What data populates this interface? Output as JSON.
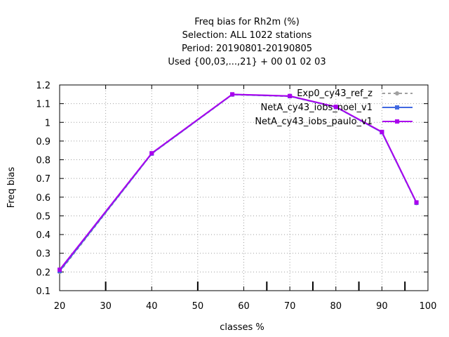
{
  "chart_data": {
    "type": "line",
    "title": [
      "Freq bias  for Rh2m (%)",
      "Selection: ALL    1022 stations",
      "Period: 20190801-20190805",
      "Used {00,03,...,21} + 00 01 02 03"
    ],
    "xlabel": "classes %",
    "ylabel": "Freq bias",
    "xlim": [
      20,
      100
    ],
    "ylim": [
      0.1,
      1.2
    ],
    "xticks": [
      20,
      30,
      40,
      50,
      60,
      70,
      80,
      90,
      100
    ],
    "yticks": [
      0.1,
      0.2,
      0.3,
      0.4,
      0.5,
      0.6,
      0.7,
      0.8,
      0.9,
      1,
      1.1,
      1.2
    ],
    "ytick_labels": [
      "0.1",
      "0.2",
      "0.3",
      "0.4",
      "0.5",
      "0.6",
      "0.7",
      "0.8",
      "0.9",
      "1",
      "1.1",
      "1.2"
    ],
    "grid": true,
    "legend_position": "top-right",
    "extra_xticks": [
      30,
      50,
      65,
      75,
      85,
      95
    ],
    "series": [
      {
        "name": "Exp0_cy43_ref_z",
        "color": "#a0a0a0",
        "dash": "dashed",
        "marker": "circle",
        "x": [
          20,
          40,
          57.5,
          70,
          80,
          90,
          97.5
        ],
        "y": [
          0.2,
          0.832,
          1.148,
          1.139,
          1.081,
          0.948,
          0.568
        ]
      },
      {
        "name": "NetA_cy43_iobs_noel_v1",
        "color": "#4169e1",
        "dash": "solid",
        "marker": "square",
        "x": [
          20,
          40,
          57.5,
          70,
          80,
          90,
          97.5
        ],
        "y": [
          0.205,
          0.833,
          1.149,
          1.14,
          1.082,
          0.947,
          0.57
        ]
      },
      {
        "name": "NetA_cy43_iobs_paulo_v1",
        "color": "#aa00ee",
        "dash": "solid",
        "marker": "square",
        "x": [
          20,
          40,
          57.5,
          70,
          80,
          90,
          97.5
        ],
        "y": [
          0.212,
          0.835,
          1.15,
          1.141,
          1.083,
          0.949,
          0.572
        ]
      }
    ]
  }
}
